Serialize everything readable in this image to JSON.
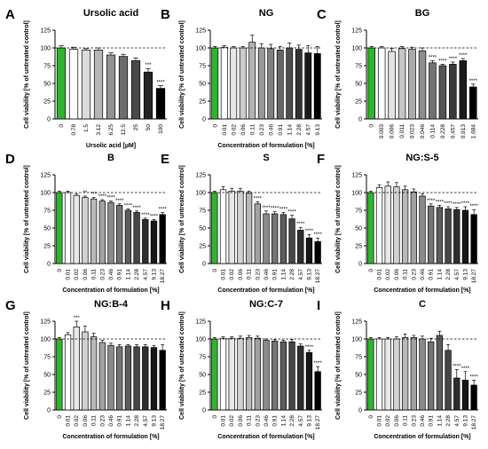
{
  "figure": {
    "y_axis_label": "Cell viability [% of untreated control]",
    "y_ticks": [
      0,
      25,
      50,
      75,
      100,
      125
    ],
    "reference_line": 100,
    "control_color": "#2db52d",
    "bar_edge_color": "#000000",
    "panel_letters": [
      "A",
      "B",
      "C",
      "D",
      "E",
      "F",
      "G",
      "H",
      "I"
    ]
  },
  "chart_data": [
    {
      "panel": "A",
      "type": "bar",
      "title": "Ursolic acid",
      "xlabel": "Ursolic acid [µM]",
      "ylabel": "Cell viability [% of untreated control]",
      "ylim": [
        0,
        125
      ],
      "reference_line": 100,
      "categories": [
        "0",
        "0.78",
        "1.5",
        "3.12",
        "6.25",
        "12.5",
        "25",
        "50",
        "100"
      ],
      "values": [
        100,
        98,
        97,
        97,
        90,
        88,
        82,
        66,
        43
      ],
      "errors": [
        3,
        3,
        2,
        3,
        3,
        3,
        4,
        5,
        4
      ],
      "significance": [
        "",
        "",
        "",
        "",
        "",
        "",
        "",
        "***",
        "****"
      ]
    },
    {
      "panel": "B",
      "type": "bar",
      "title": "NG",
      "xlabel": "Concentration of formulation [%]",
      "ylabel": "Cell viability [% of untreated control]",
      "ylim": [
        0,
        125
      ],
      "reference_line": 100,
      "categories": [
        "0",
        "0.01",
        "0.02",
        "0.06",
        "0.11",
        "0.23",
        "0.46",
        "0.91",
        "1.14",
        "2.28",
        "4.57",
        "9.13"
      ],
      "values": [
        100,
        101,
        100,
        100,
        108,
        100,
        99,
        97,
        100,
        98,
        93,
        92
      ],
      "errors": [
        2,
        2,
        2,
        2,
        10,
        6,
        6,
        5,
        7,
        6,
        10,
        10
      ],
      "significance": [
        "",
        "",
        "",
        "",
        "",
        "",
        "",
        "",
        "",
        "",
        "",
        ""
      ]
    },
    {
      "panel": "C",
      "type": "bar",
      "title": "BG",
      "xlabel": "",
      "ylabel": "Cell viability [% of untreated control]",
      "ylim": [
        0,
        125
      ],
      "reference_line": 100,
      "categories": [
        "0",
        "0.003",
        "0.006",
        "0.011",
        "0.023",
        "0.046",
        "0.114",
        "0.228",
        "0.457",
        "0.913",
        "1.684"
      ],
      "values": [
        100,
        100,
        95,
        99,
        98,
        96,
        79,
        75,
        77,
        82,
        45
      ],
      "errors": [
        2,
        2,
        4,
        3,
        3,
        4,
        3,
        2,
        3,
        3,
        4
      ],
      "significance": [
        "",
        "",
        "",
        "",
        "",
        "",
        "****",
        "****",
        "****",
        "****",
        "****"
      ]
    },
    {
      "panel": "D",
      "type": "bar",
      "title": "B",
      "xlabel": "Concentration of formulation [%]",
      "ylabel": "Cell viability [% of untreated control]",
      "ylim": [
        0,
        125
      ],
      "reference_line": 100,
      "categories": [
        "0",
        "0.01",
        "0.02",
        "0.06",
        "0.11",
        "0.23",
        "0.46",
        "0.91",
        "1.14",
        "2.28",
        "4.57",
        "9.13",
        "18.27"
      ],
      "values": [
        100,
        100,
        96,
        93,
        91,
        88,
        86,
        82,
        75,
        72,
        62,
        60,
        69
      ],
      "errors": [
        2,
        2,
        2,
        2,
        2,
        2,
        2,
        2,
        2,
        2,
        2,
        2,
        3
      ],
      "significance": [
        "",
        "",
        "",
        "**",
        "***",
        "****",
        "****",
        "****",
        "****",
        "****",
        "****",
        "****",
        "****"
      ]
    },
    {
      "panel": "E",
      "type": "bar",
      "title": "S",
      "xlabel": "Concentration of formulation [%]",
      "ylabel": "Cell viability [% of untreated control]",
      "ylim": [
        0,
        125
      ],
      "reference_line": 100,
      "categories": [
        "0",
        "0.01",
        "0.02",
        "0.06",
        "0.11",
        "0.23",
        "0.46",
        "0.91",
        "1.14",
        "2.28",
        "4.57",
        "9.13",
        "18.27"
      ],
      "values": [
        100,
        104,
        102,
        102,
        99,
        84,
        70,
        70,
        69,
        63,
        47,
        36,
        31
      ],
      "errors": [
        2,
        4,
        4,
        4,
        3,
        3,
        4,
        3,
        3,
        5,
        4,
        5,
        5
      ],
      "significance": [
        "",
        "",
        "",
        "",
        "",
        "****",
        "****",
        "****",
        "****",
        "****",
        "****",
        "****",
        "****"
      ]
    },
    {
      "panel": "F",
      "type": "bar",
      "title": "NG:S-5",
      "xlabel": "Concentration of formulation [%]",
      "ylabel": "Cell viability [% of untreated control]",
      "ylim": [
        0,
        125
      ],
      "reference_line": 100,
      "categories": [
        "0",
        "0.01",
        "0.02",
        "0.06",
        "0.11",
        "0.23",
        "0.46",
        "0.91",
        "1.14",
        "2.28",
        "4.57",
        "9.13",
        "18.27"
      ],
      "values": [
        100,
        107,
        109,
        108,
        104,
        101,
        95,
        81,
        79,
        77,
        76,
        75,
        69
      ],
      "errors": [
        2,
        4,
        6,
        6,
        5,
        4,
        3,
        3,
        3,
        3,
        3,
        5,
        7
      ],
      "significance": [
        "",
        "",
        "",
        "",
        "",
        "",
        "",
        "****",
        "****",
        "****",
        "****",
        "****",
        "****"
      ]
    },
    {
      "panel": "G",
      "type": "bar",
      "title": "NG:B-4",
      "xlabel": "Concentration of formulation [%]",
      "ylabel": "Cell viability [% of untreated control]",
      "ylim": [
        0,
        125
      ],
      "reference_line": 100,
      "categories": [
        "0",
        "0.01",
        "0.02",
        "0.06",
        "0.11",
        "0.23",
        "0.46",
        "0.91",
        "1.14",
        "2.28",
        "4.57",
        "9.13",
        "18.27"
      ],
      "values": [
        100,
        106,
        117,
        110,
        103,
        95,
        91,
        89,
        90,
        89,
        89,
        88,
        84
      ],
      "errors": [
        2,
        3,
        8,
        8,
        5,
        3,
        3,
        3,
        2,
        3,
        3,
        3,
        8
      ],
      "significance": [
        "",
        "",
        "***",
        "",
        "",
        "",
        "",
        "",
        "",
        "",
        "",
        "",
        ""
      ]
    },
    {
      "panel": "H",
      "type": "bar",
      "title": "NG:C-7",
      "xlabel": "Concentration of formulation [%]",
      "ylabel": "Cell viability [% of untreated control]",
      "ylim": [
        0,
        125
      ],
      "reference_line": 100,
      "categories": [
        "0",
        "0.01",
        "0.02",
        "0.06",
        "0.11",
        "0.23",
        "0.46",
        "0.91",
        "1.14",
        "2.28",
        "4.57",
        "9.13",
        "18.27"
      ],
      "values": [
        100,
        101,
        101,
        101,
        102,
        101,
        98,
        97,
        96,
        96,
        90,
        81,
        54
      ],
      "errors": [
        2,
        2,
        2,
        3,
        3,
        3,
        2,
        2,
        2,
        3,
        3,
        3,
        7
      ],
      "significance": [
        "",
        "",
        "",
        "",
        "",
        "",
        "",
        "",
        "",
        "",
        "",
        "****",
        "****"
      ]
    },
    {
      "panel": "I",
      "type": "bar",
      "title": "C",
      "xlabel": "Concentration of formulation [%]",
      "ylabel": "Cell viability [% of untreated control]",
      "ylim": [
        0,
        125
      ],
      "reference_line": 100,
      "categories": [
        "0",
        "0.01",
        "0.02",
        "0.06",
        "0.11",
        "0.23",
        "0.46",
        "0.91",
        "1.14",
        "2.28",
        "4.57",
        "9.13",
        "18.27"
      ],
      "values": [
        100,
        100,
        100,
        100,
        102,
        102,
        100,
        96,
        105,
        84,
        45,
        42,
        35
      ],
      "errors": [
        2,
        2,
        2,
        3,
        5,
        3,
        4,
        5,
        6,
        8,
        12,
        12,
        7
      ],
      "significance": [
        "",
        "",
        "",
        "",
        "",
        "",
        "",
        "",
        "",
        "",
        "****",
        "****",
        "****"
      ]
    }
  ]
}
